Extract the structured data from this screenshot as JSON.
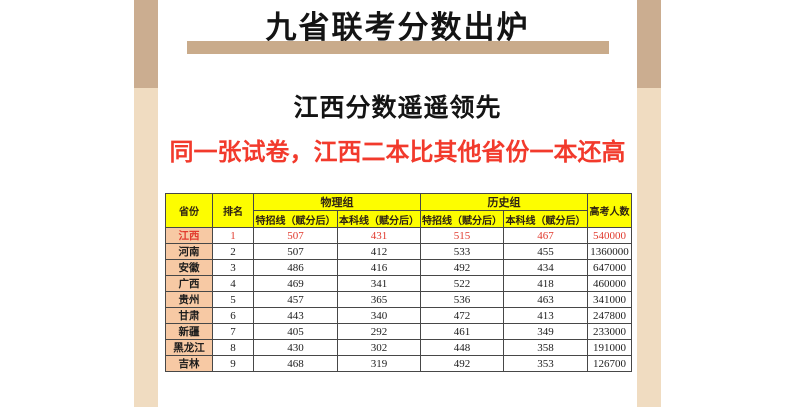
{
  "page": {
    "title": "九省联考分数出炉",
    "subtitle": "江西分数遥遥领先",
    "highlight_line": "同一张试卷，江西二本比其他省份一本还高"
  },
  "colors": {
    "bar_dark_tan": "#cbad90",
    "bar_light_tan": "#f0dcc1",
    "title_underline_tan": "#c9ab8b",
    "header_yellow": "#fdfd00",
    "province_peach": "#f7c9a4",
    "highlight_red": "#e13a2e",
    "banner_red": "#f23a2c"
  },
  "table": {
    "headers": {
      "province": "省份",
      "rank": "排名",
      "physics_group": "物理组",
      "history_group": "历史组",
      "special_line": "特招线（赋分后）",
      "undergrad_line": "本科线（赋分后）",
      "candidates": "高考人数"
    },
    "rows": [
      {
        "province": "江西",
        "rank": "1",
        "phy_special": "507",
        "phy_undergrad": "431",
        "his_special": "515",
        "his_undergrad": "467",
        "candidates": "540000",
        "highlight": true
      },
      {
        "province": "河南",
        "rank": "2",
        "phy_special": "507",
        "phy_undergrad": "412",
        "his_special": "533",
        "his_undergrad": "455",
        "candidates": "1360000",
        "highlight": false
      },
      {
        "province": "安徽",
        "rank": "3",
        "phy_special": "486",
        "phy_undergrad": "416",
        "his_special": "492",
        "his_undergrad": "434",
        "candidates": "647000",
        "highlight": false
      },
      {
        "province": "广西",
        "rank": "4",
        "phy_special": "469",
        "phy_undergrad": "341",
        "his_special": "522",
        "his_undergrad": "418",
        "candidates": "460000",
        "highlight": false
      },
      {
        "province": "贵州",
        "rank": "5",
        "phy_special": "457",
        "phy_undergrad": "365",
        "his_special": "536",
        "his_undergrad": "463",
        "candidates": "341000",
        "highlight": false
      },
      {
        "province": "甘肃",
        "rank": "6",
        "phy_special": "443",
        "phy_undergrad": "340",
        "his_special": "472",
        "his_undergrad": "413",
        "candidates": "247800",
        "highlight": false
      },
      {
        "province": "新疆",
        "rank": "7",
        "phy_special": "405",
        "phy_undergrad": "292",
        "his_special": "461",
        "his_undergrad": "349",
        "candidates": "233000",
        "highlight": false
      },
      {
        "province": "黑龙江",
        "rank": "8",
        "phy_special": "430",
        "phy_undergrad": "302",
        "his_special": "448",
        "his_undergrad": "358",
        "candidates": "191000",
        "highlight": false
      },
      {
        "province": "吉林",
        "rank": "9",
        "phy_special": "468",
        "phy_undergrad": "319",
        "his_special": "492",
        "his_undergrad": "353",
        "candidates": "126700",
        "highlight": false
      }
    ]
  }
}
